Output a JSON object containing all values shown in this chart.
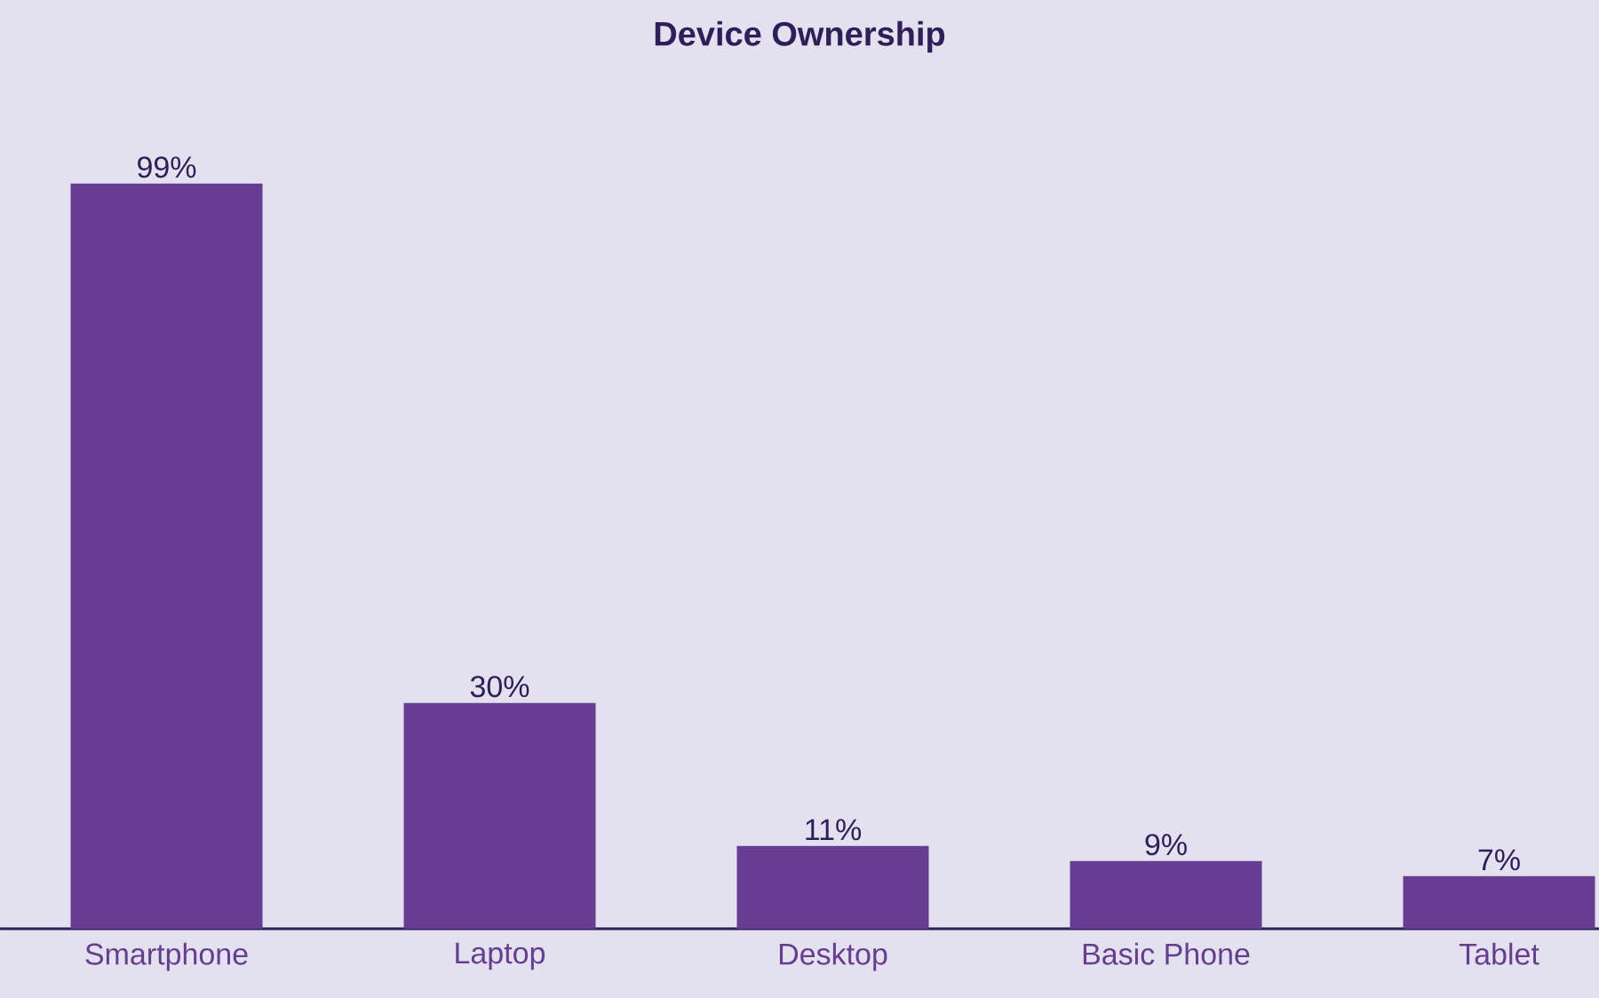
{
  "chart_data": {
    "type": "bar",
    "title": "Device Ownership",
    "categories": [
      "Smartphone",
      "Laptop",
      "Desktop",
      "Basic Phone",
      "Tablet"
    ],
    "values": [
      99,
      30,
      11,
      9,
      7
    ],
    "value_labels": [
      "99%",
      "30%",
      "11%",
      "9%",
      "7%"
    ],
    "color": "#673d92"
  }
}
